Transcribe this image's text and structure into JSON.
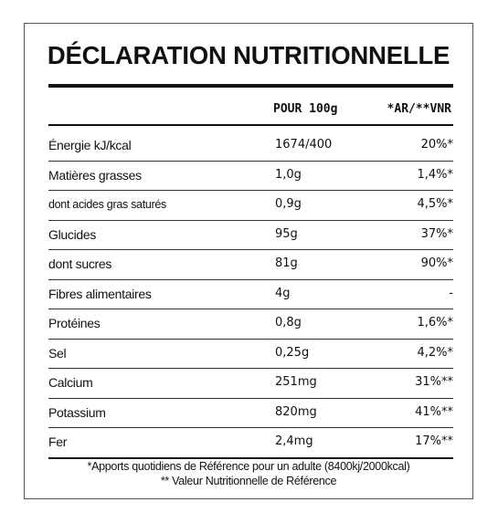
{
  "title": "DÉCLARATION NUTRITIONNELLE",
  "headers": {
    "per100": "POUR 100g",
    "ar": "*AR/**VNR"
  },
  "rows": [
    {
      "label": "Énergie kJ/kcal",
      "value": "1674/400",
      "ar": "20%*"
    },
    {
      "label": "Matières grasses",
      "value": "1,0g",
      "ar": "1,4%*"
    },
    {
      "label": "dont acides gras saturés",
      "value": "0,9g",
      "ar": "4,5%*"
    },
    {
      "label": "Glucides",
      "value": "95g",
      "ar": "37%*"
    },
    {
      "label": "dont sucres",
      "value": "81g",
      "ar": "90%*"
    },
    {
      "label": "Fibres alimentaires",
      "value": "4g",
      "ar": "-"
    },
    {
      "label": "Protéines",
      "value": "0,8g",
      "ar": "1,6%*"
    },
    {
      "label": "Sel",
      "value": "0,25g",
      "ar": "4,2%*"
    },
    {
      "label": "Calcium",
      "value": "251mg",
      "ar": "31%**"
    },
    {
      "label": "Potassium",
      "value": "820mg",
      "ar": "41%**"
    },
    {
      "label": "Fer",
      "value": "2,4mg",
      "ar": "17%**"
    }
  ],
  "footnotes": {
    "line1": "*Apports quotidiens de Référence pour un adulte (8400kj/2000kcal)",
    "line2": "** Valeur Nutritionnelle de Référence"
  }
}
